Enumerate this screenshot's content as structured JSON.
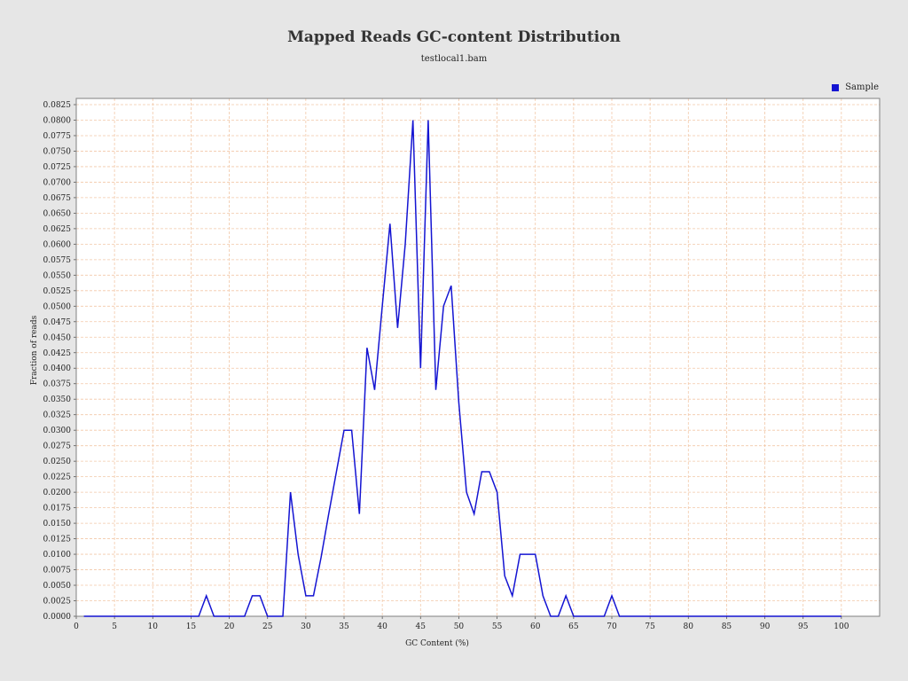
{
  "colors": {
    "background": "#e6e6e6",
    "plot_background": "#ffffff",
    "grid": "#f2c8a8",
    "series": "#1414d2"
  },
  "chart_data": {
    "type": "line",
    "title": "Mapped Reads GC-content Distribution",
    "subtitle": "testlocal1.bam",
    "xlabel": "GC Content (%)",
    "ylabel": "Fraction of reads",
    "xlim": [
      0,
      105
    ],
    "ylim": [
      0,
      0.0835
    ],
    "x_ticks": [
      0,
      5,
      10,
      15,
      20,
      25,
      30,
      35,
      40,
      45,
      50,
      55,
      60,
      65,
      70,
      75,
      80,
      85,
      90,
      95,
      100
    ],
    "y_ticks": [
      "0.0000",
      "0.0025",
      "0.0050",
      "0.0075",
      "0.0100",
      "0.0125",
      "0.0150",
      "0.0175",
      "0.0200",
      "0.0225",
      "0.0250",
      "0.0275",
      "0.0300",
      "0.0325",
      "0.0350",
      "0.0375",
      "0.0400",
      "0.0425",
      "0.0450",
      "0.0475",
      "0.0500",
      "0.0525",
      "0.0550",
      "0.0575",
      "0.0600",
      "0.0625",
      "0.0650",
      "0.0675",
      "0.0700",
      "0.0725",
      "0.0750",
      "0.0775",
      "0.0800",
      "0.0825"
    ],
    "grid": true,
    "legend_position": "top-right",
    "series": [
      {
        "name": "Sample",
        "x": [
          1,
          2,
          3,
          4,
          5,
          6,
          7,
          8,
          9,
          10,
          11,
          12,
          13,
          14,
          15,
          16,
          17,
          18,
          19,
          20,
          21,
          22,
          23,
          24,
          25,
          26,
          27,
          28,
          29,
          30,
          31,
          32,
          33,
          34,
          35,
          36,
          37,
          38,
          39,
          40,
          41,
          42,
          43,
          44,
          45,
          46,
          47,
          48,
          49,
          50,
          51,
          52,
          53,
          54,
          55,
          56,
          57,
          58,
          59,
          60,
          61,
          62,
          63,
          64,
          65,
          66,
          67,
          68,
          69,
          70,
          71,
          72,
          73,
          74,
          75,
          76,
          77,
          78,
          79,
          80,
          81,
          82,
          83,
          84,
          85,
          86,
          87,
          88,
          89,
          90,
          91,
          92,
          93,
          94,
          95,
          96,
          97,
          98,
          99,
          100
        ],
        "y": [
          0,
          0,
          0,
          0,
          0,
          0,
          0,
          0,
          0,
          0,
          0,
          0,
          0,
          0,
          0,
          0,
          0.0033,
          0,
          0,
          0,
          0,
          0,
          0.0033,
          0.0033,
          0,
          0,
          0,
          0.02,
          0.01,
          0.0033,
          0.0033,
          0.0095,
          0.0165,
          0.0233,
          0.03,
          0.03,
          0.0165,
          0.0433,
          0.0365,
          0.05,
          0.0633,
          0.0465,
          0.06,
          0.08,
          0.04,
          0.08,
          0.0365,
          0.05,
          0.0533,
          0.0345,
          0.02,
          0.0165,
          0.0233,
          0.0233,
          0.02,
          0.0065,
          0.0033,
          0.01,
          0.01,
          0.01,
          0.0033,
          0,
          0,
          0.0033,
          0,
          0,
          0,
          0,
          0,
          0.0033,
          0,
          0,
          0,
          0,
          0,
          0,
          0,
          0,
          0,
          0,
          0,
          0,
          0,
          0,
          0,
          0,
          0,
          0,
          0,
          0,
          0,
          0,
          0,
          0,
          0,
          0,
          0,
          0,
          0,
          0
        ]
      }
    ]
  }
}
